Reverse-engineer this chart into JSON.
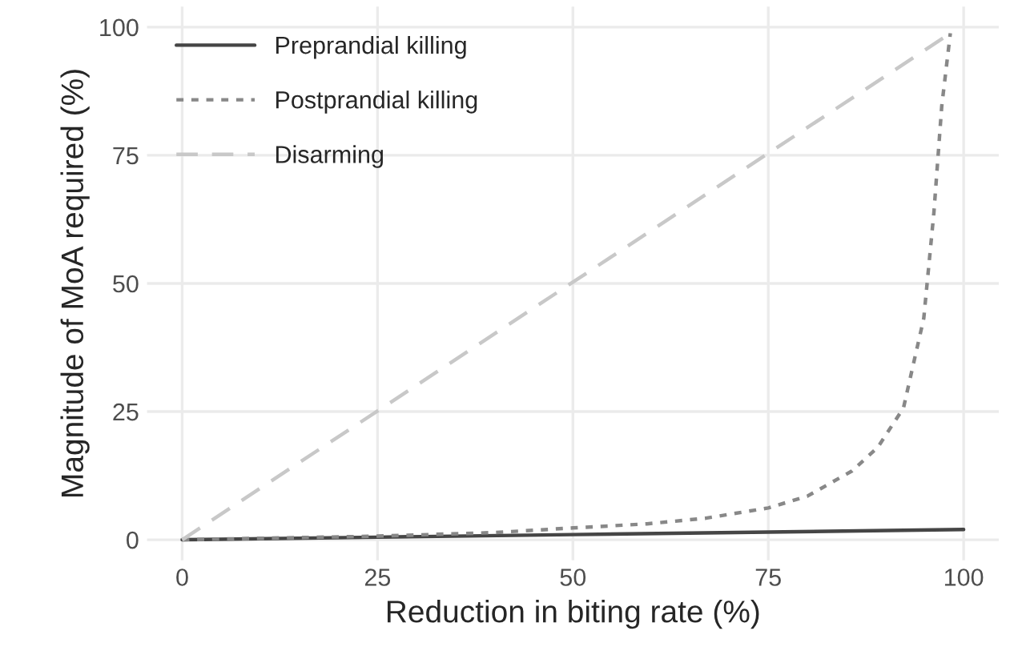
{
  "chart_data": {
    "type": "line",
    "xlabel": "Reduction in biting rate (%)",
    "ylabel": "Magnitude of MoA required (%)",
    "xlim": [
      -4.5,
      104.5
    ],
    "ylim": [
      -4,
      104
    ],
    "xticks": [
      0,
      25,
      50,
      75,
      100
    ],
    "yticks": [
      0,
      25,
      50,
      75,
      100
    ],
    "grid": true,
    "legend": "top left",
    "series": [
      {
        "name": "Preprandial killing",
        "color": "#454545",
        "line_style": "solid",
        "x": [
          0,
          25,
          50,
          75,
          100
        ],
        "values": [
          0,
          0.5,
          1,
          1.5,
          2
        ]
      },
      {
        "name": "Postprandial killing",
        "color": "#888888",
        "line_style": "dotted",
        "x": [
          0,
          25,
          40,
          50,
          59.5,
          67,
          75,
          80,
          85.7,
          89,
          92.3,
          94.9,
          96.2,
          97.2,
          98.3
        ],
        "values": [
          0,
          0.7,
          1.4,
          2.3,
          3.1,
          4.2,
          6.2,
          8.5,
          13.4,
          18,
          25.7,
          43.2,
          63.9,
          84.6,
          98.8
        ]
      },
      {
        "name": "Disarming",
        "color": "#c8c8c8",
        "line_style": "dashed",
        "x": [
          0,
          98.3
        ],
        "values": [
          0,
          98.8
        ]
      }
    ]
  }
}
